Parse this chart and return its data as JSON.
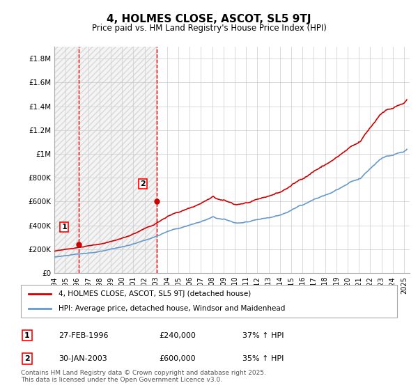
{
  "title": "4, HOLMES CLOSE, ASCOT, SL5 9TJ",
  "subtitle": "Price paid vs. HM Land Registry's House Price Index (HPI)",
  "ylabel_ticks": [
    "£0",
    "£200K",
    "£400K",
    "£600K",
    "£800K",
    "£1M",
    "£1.2M",
    "£1.4M",
    "£1.6M",
    "£1.8M"
  ],
  "ylabel_values": [
    0,
    200000,
    400000,
    600000,
    800000,
    1000000,
    1200000,
    1400000,
    1600000,
    1800000
  ],
  "ylim": [
    0,
    1900000
  ],
  "xlim_start": 1994.0,
  "xlim_end": 2025.5,
  "sale1_x": 1996.15,
  "sale1_y": 240000,
  "sale2_x": 2003.08,
  "sale2_y": 600000,
  "sale1_label": "1",
  "sale2_label": "2",
  "vline1_x": 1996.15,
  "vline2_x": 2003.08,
  "legend_line1": "4, HOLMES CLOSE, ASCOT, SL5 9TJ (detached house)",
  "legend_line2": "HPI: Average price, detached house, Windsor and Maidenhead",
  "table_row1": [
    "1",
    "27-FEB-1996",
    "£240,000",
    "37% ↑ HPI"
  ],
  "table_row2": [
    "2",
    "30-JAN-2003",
    "£600,000",
    "35% ↑ HPI"
  ],
  "footer": "Contains HM Land Registry data © Crown copyright and database right 2025.\nThis data is licensed under the Open Government Licence v3.0.",
  "hpi_color": "#6699cc",
  "price_color": "#cc0000",
  "vline_color": "#cc0000",
  "background_hatch_color": "#e8e8e8",
  "grid_color": "#cccccc"
}
